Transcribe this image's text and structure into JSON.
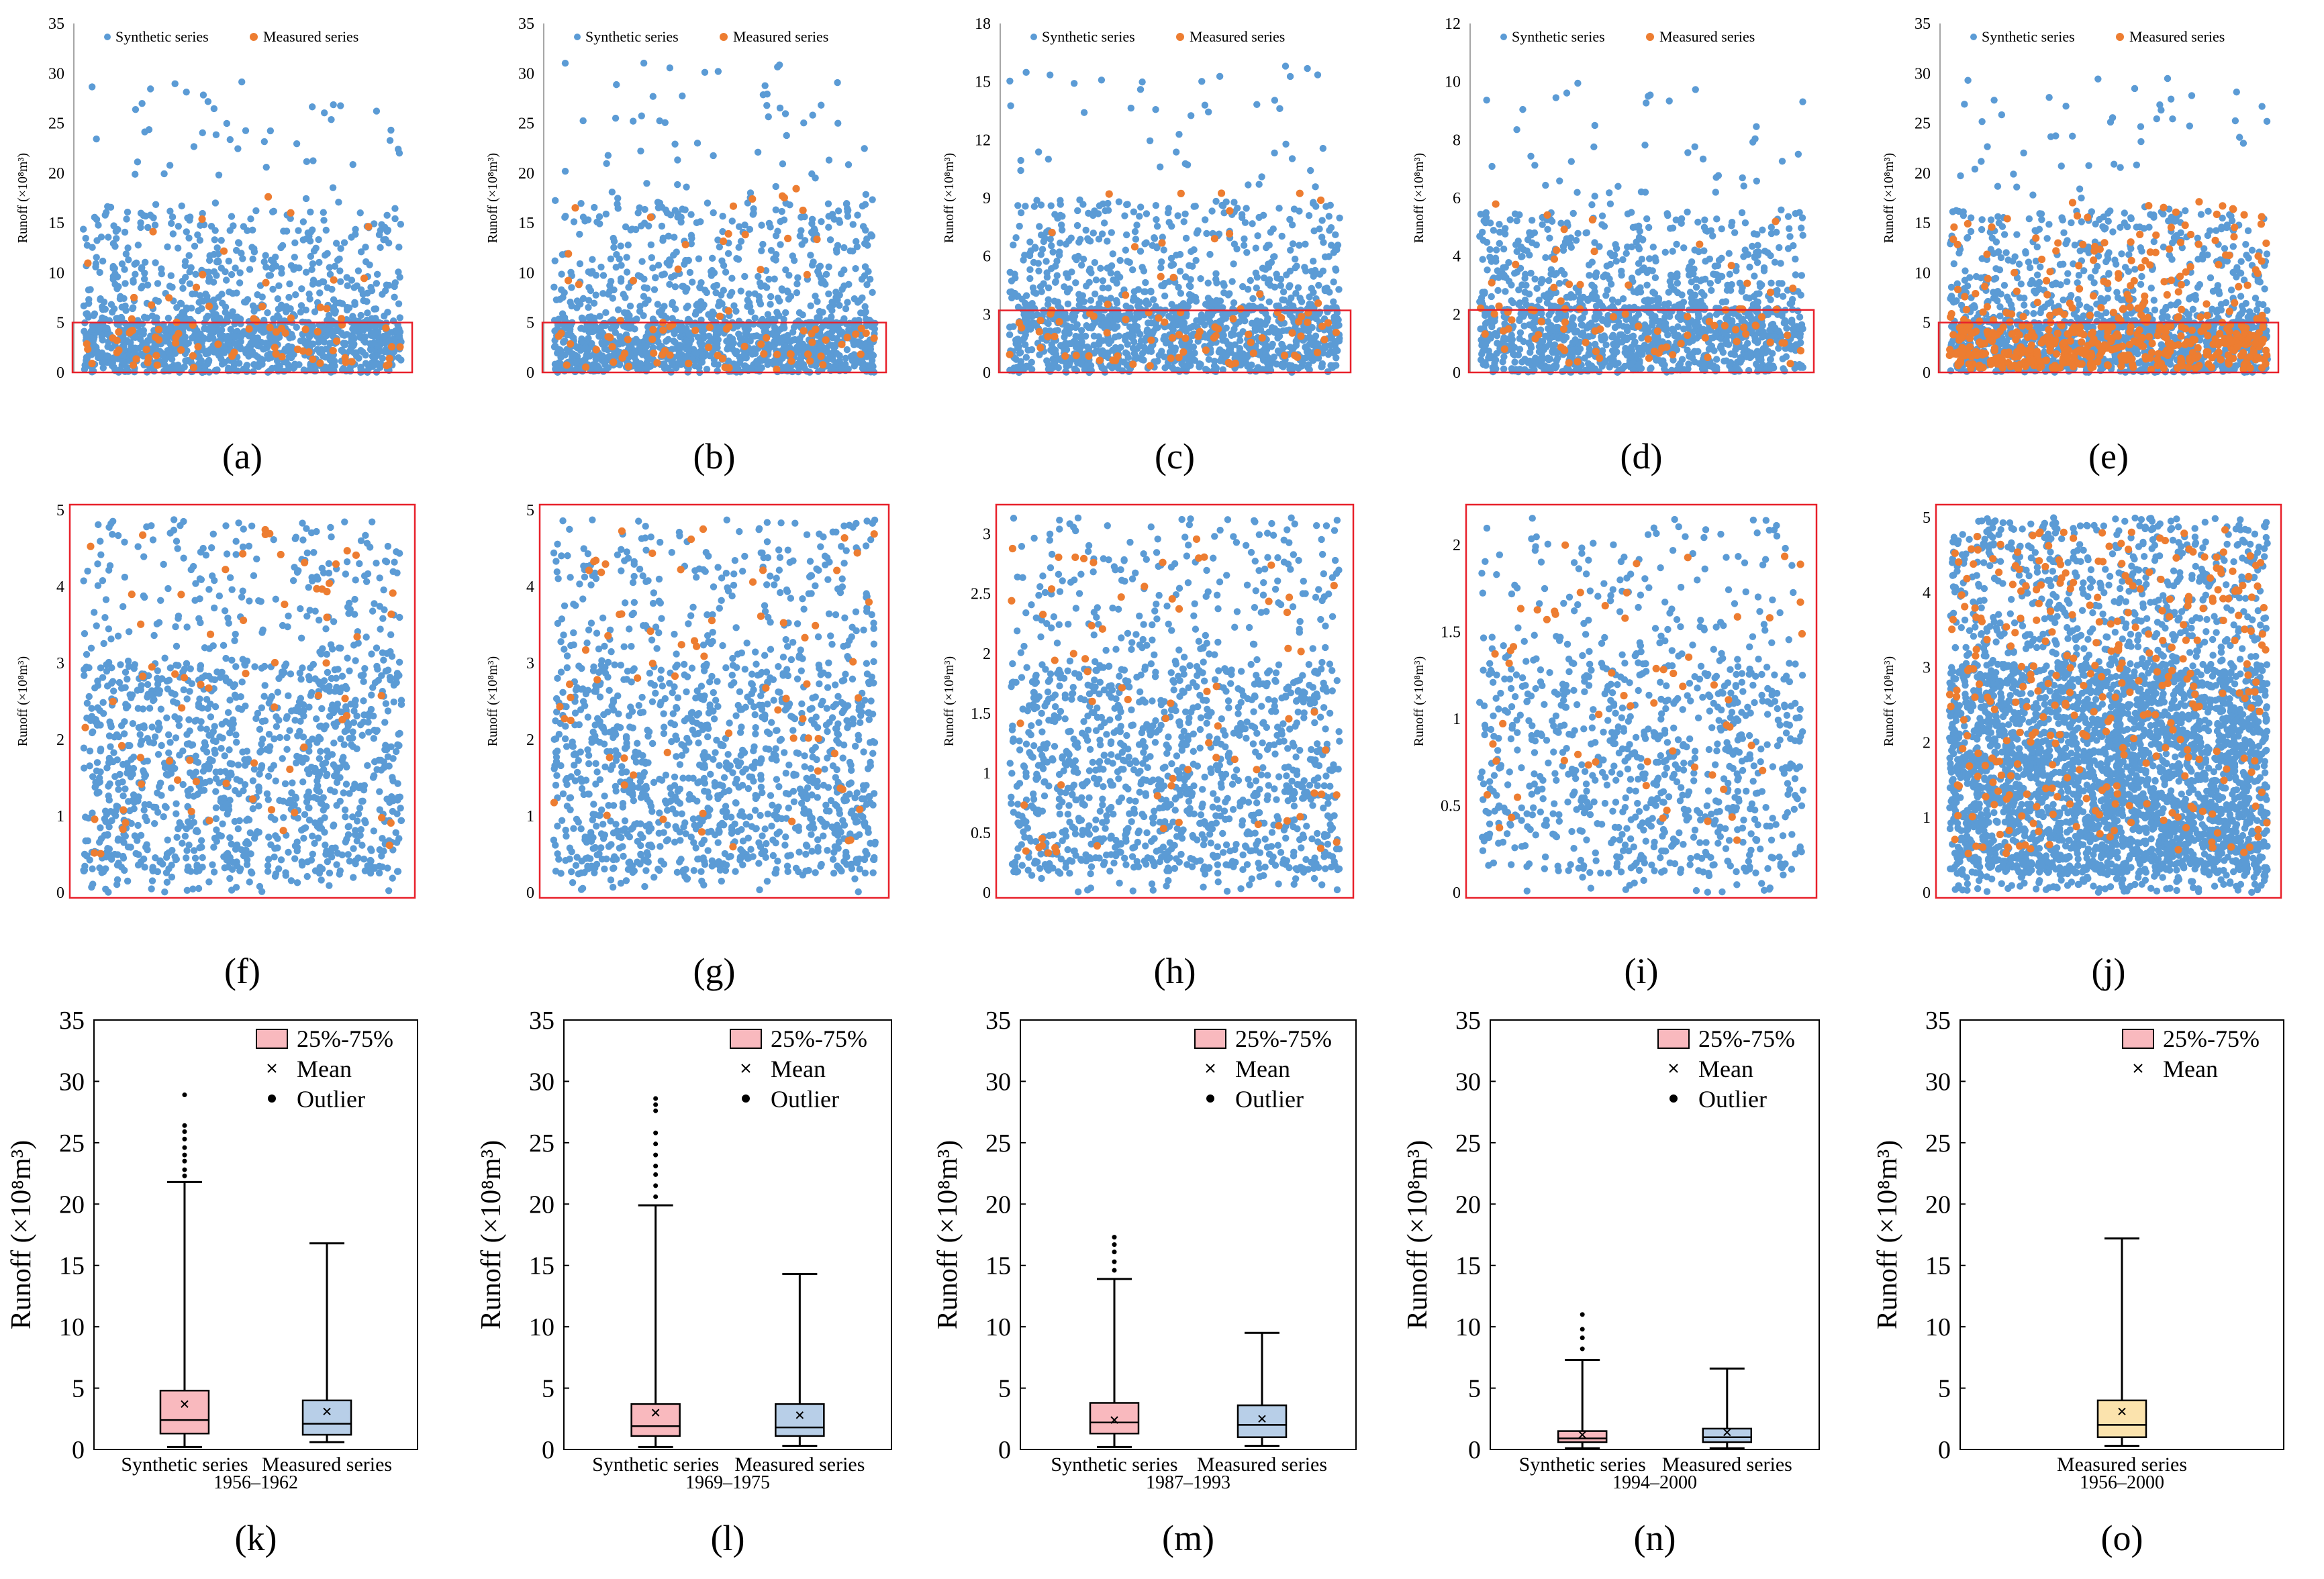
{
  "figure": {
    "legend": {
      "synthetic": "Synthetic series",
      "measured": "Measured series",
      "box": "25%-75%",
      "mean": "Mean",
      "outlier": "Outlier"
    },
    "ylabel_scatter": "Runoff (×10⁸m³)",
    "ylabel_box": "Runoff (×10⁸m³)",
    "colors": {
      "synthetic": "#5b9bd5",
      "measured": "#ed7d31",
      "threshold": "#e8202a",
      "box_synthetic": "#f9b9be",
      "box_measured": "#b8cfe8",
      "box_single": "#fbe3ad"
    }
  },
  "chart_data": [
    {
      "panel": "(a)",
      "type": "scatter",
      "ylim": [
        0,
        35
      ],
      "yticks": [
        0,
        5,
        10,
        15,
        20,
        25,
        30,
        35
      ],
      "threshold": 5,
      "synthetic_count": 1400,
      "measured_count": 84,
      "max_value": 29.5,
      "legend": [
        "Synthetic series",
        "Measured series"
      ]
    },
    {
      "panel": "(b)",
      "type": "scatter",
      "ylim": [
        0,
        35
      ],
      "yticks": [
        0,
        5,
        10,
        15,
        20,
        25,
        30,
        35
      ],
      "threshold": 5,
      "synthetic_count": 1400,
      "measured_count": 84,
      "max_value": 31.2,
      "legend": [
        "Synthetic series",
        "Measured series"
      ]
    },
    {
      "panel": "(c)",
      "type": "scatter",
      "ylim": [
        0,
        18
      ],
      "yticks": [
        0,
        3,
        6,
        9,
        12,
        15,
        18
      ],
      "threshold": 3.2,
      "synthetic_count": 1400,
      "measured_count": 84,
      "max_value": 16.2,
      "legend": [
        "Synthetic series",
        "Measured series"
      ]
    },
    {
      "panel": "(d)",
      "type": "scatter",
      "ylim": [
        0,
        12
      ],
      "yticks": [
        0,
        2,
        4,
        6,
        8,
        10,
        12
      ],
      "threshold": 2.15,
      "synthetic_count": 1400,
      "measured_count": 84,
      "max_value": 10.0,
      "legend": [
        "Synthetic series",
        "Measured series"
      ]
    },
    {
      "panel": "(e)",
      "type": "scatter",
      "ylim": [
        0,
        35
      ],
      "yticks": [
        0,
        5,
        10,
        15,
        20,
        25,
        30,
        35
      ],
      "threshold": 5,
      "synthetic_count": 1400,
      "measured_count": 540,
      "max_value": 29.5,
      "legend": [
        "Synthetic series",
        "Measured series"
      ]
    },
    {
      "panel": "(f)",
      "type": "scatter",
      "ylim": [
        0,
        5
      ],
      "yticks": [
        0,
        1,
        2,
        3,
        4,
        5
      ],
      "synthetic_count": 1300,
      "measured_count": 70
    },
    {
      "panel": "(g)",
      "type": "scatter",
      "ylim": [
        0,
        5
      ],
      "yticks": [
        0,
        1,
        2,
        3,
        4,
        5
      ],
      "synthetic_count": 1300,
      "measured_count": 70
    },
    {
      "panel": "(h)",
      "type": "scatter",
      "ylim": [
        0,
        3.2
      ],
      "yticks": [
        0,
        0.5,
        1,
        1.5,
        2,
        2.5,
        3
      ],
      "synthetic_count": 1300,
      "measured_count": 70
    },
    {
      "panel": "(i)",
      "type": "scatter",
      "ylim": [
        0,
        2.2
      ],
      "yticks": [
        0,
        0.5,
        1,
        1.5,
        2
      ],
      "synthetic_count": 900,
      "measured_count": 60
    },
    {
      "panel": "(j)",
      "type": "scatter",
      "ylim": [
        0,
        5.1
      ],
      "yticks": [
        0,
        1,
        2,
        3,
        4,
        5
      ],
      "synthetic_count": 3600,
      "measured_count": 320
    },
    {
      "panel": "(k)",
      "type": "box",
      "ylim": [
        0,
        35
      ],
      "yticks": [
        0,
        5,
        10,
        15,
        20,
        25,
        30,
        35
      ],
      "period": "1956–1962",
      "legend": [
        "25%-75%",
        "Mean",
        "Outlier"
      ],
      "boxes": [
        {
          "name": "Synthetic series",
          "min": 0.2,
          "q1": 1.3,
          "median": 2.4,
          "q3": 4.8,
          "max": 21.8,
          "mean": 3.7,
          "outliers": [
            22.3,
            22.8,
            23.5,
            24.0,
            24.6,
            25.3,
            25.9,
            26.4,
            28.9
          ]
        },
        {
          "name": "Measured series",
          "min": 0.6,
          "q1": 1.2,
          "median": 2.1,
          "q3": 4.0,
          "max": 16.8,
          "mean": 3.1,
          "outliers": []
        }
      ]
    },
    {
      "panel": "(l)",
      "type": "box",
      "ylim": [
        0,
        35
      ],
      "yticks": [
        0,
        5,
        10,
        15,
        20,
        25,
        30,
        35
      ],
      "period": "1969–1975",
      "legend": [
        "25%-75%",
        "Mean",
        "Outlier"
      ],
      "boxes": [
        {
          "name": "Synthetic series",
          "min": 0.2,
          "q1": 1.1,
          "median": 1.9,
          "q3": 3.7,
          "max": 19.9,
          "mean": 3.0,
          "outliers": [
            20.6,
            21.5,
            22.4,
            23.1,
            24.0,
            24.9,
            25.8,
            27.6,
            28.1,
            28.6
          ]
        },
        {
          "name": "Measured series",
          "min": 0.3,
          "q1": 1.1,
          "median": 1.8,
          "q3": 3.7,
          "max": 14.3,
          "mean": 2.8,
          "outliers": []
        }
      ]
    },
    {
      "panel": "(m)",
      "type": "box",
      "ylim": [
        0,
        35
      ],
      "yticks": [
        0,
        5,
        10,
        15,
        20,
        25,
        30,
        35
      ],
      "period": "1987–1993",
      "legend": [
        "25%-75%",
        "Mean",
        "Outlier"
      ],
      "boxes": [
        {
          "name": "Synthetic series",
          "min": 0.2,
          "q1": 1.3,
          "median": 2.2,
          "q3": 3.8,
          "max": 13.9,
          "mean": 2.4,
          "outliers": [
            14.6,
            15.3,
            16.1,
            16.7,
            17.3
          ]
        },
        {
          "name": "Measured series",
          "min": 0.3,
          "q1": 1.0,
          "median": 2.0,
          "q3": 3.6,
          "max": 9.5,
          "mean": 2.5,
          "outliers": []
        }
      ]
    },
    {
      "panel": "(n)",
      "type": "box",
      "ylim": [
        0,
        35
      ],
      "yticks": [
        0,
        5,
        10,
        15,
        20,
        25,
        30,
        35
      ],
      "period": "1994–2000",
      "legend": [
        "25%-75%",
        "Mean",
        "Outlier"
      ],
      "boxes": [
        {
          "name": "Synthetic series",
          "min": 0.1,
          "q1": 0.6,
          "median": 0.9,
          "q3": 1.5,
          "max": 7.3,
          "mean": 1.2,
          "outliers": [
            8.2,
            9.1,
            9.8,
            11.0
          ]
        },
        {
          "name": "Measured series",
          "min": 0.1,
          "q1": 0.6,
          "median": 1.0,
          "q3": 1.7,
          "max": 6.6,
          "mean": 1.4,
          "outliers": []
        }
      ]
    },
    {
      "panel": "(o)",
      "type": "box",
      "ylim": [
        0,
        35
      ],
      "yticks": [
        0,
        5,
        10,
        15,
        20,
        25,
        30,
        35
      ],
      "period": "1956–2000",
      "legend": [
        "25%-75%",
        "Mean"
      ],
      "boxes": [
        {
          "name": "Measured series",
          "min": 0.3,
          "q1": 1.0,
          "median": 2.0,
          "q3": 4.0,
          "max": 17.2,
          "mean": 3.1,
          "outliers": []
        }
      ]
    }
  ]
}
